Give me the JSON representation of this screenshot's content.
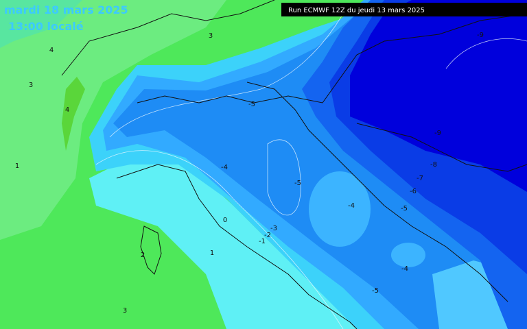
{
  "header": {
    "date": "mardi 18 mars 2025",
    "time": "13:00 localé",
    "run": "Run ECMWF 12Z du jeudi 13 mars 2025"
  },
  "contour_labels": [
    3,
    4,
    3,
    4,
    1,
    -9,
    -5,
    -9,
    -4,
    -8,
    -7,
    -5,
    -6,
    -4,
    -5,
    0,
    -3,
    -2,
    -1,
    2,
    1,
    -4,
    -5,
    3
  ]
}
